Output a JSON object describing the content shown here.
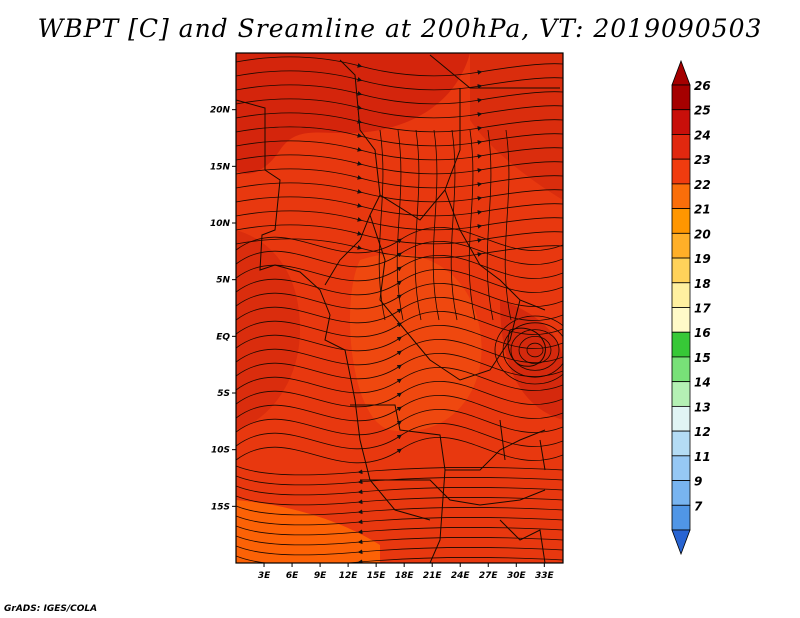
{
  "title": "WBPT [C] and Sreamline at 200hPa, VT: 2019090503",
  "credit": "GrADS: IGES/COLA",
  "map": {
    "lon_range": [
      0,
      35
    ],
    "lat_range": [
      -20,
      25
    ],
    "lat_ticks": [
      {
        "value": 20,
        "label": "20N"
      },
      {
        "value": 15,
        "label": "15N"
      },
      {
        "value": 10,
        "label": "10N"
      },
      {
        "value": 5,
        "label": "5N"
      },
      {
        "value": 0,
        "label": "EQ"
      },
      {
        "value": -5,
        "label": "5S"
      },
      {
        "value": -10,
        "label": "10S"
      },
      {
        "value": -15,
        "label": "15S"
      }
    ],
    "lon_ticks": [
      {
        "value": 3,
        "label": "3E"
      },
      {
        "value": 6,
        "label": "6E"
      },
      {
        "value": 9,
        "label": "9E"
      },
      {
        "value": 12,
        "label": "12E"
      },
      {
        "value": 15,
        "label": "15E"
      },
      {
        "value": 18,
        "label": "18E"
      },
      {
        "value": 21,
        "label": "21E"
      },
      {
        "value": 24,
        "label": "24E"
      },
      {
        "value": 27,
        "label": "27E"
      },
      {
        "value": 30,
        "label": "30E"
      },
      {
        "value": 33,
        "label": "33E"
      }
    ],
    "field_colors": {
      "dominant": "#e83214",
      "dark": "#c81e0c",
      "light": "#f0500f",
      "orange": "#ff6a00"
    }
  },
  "colorbar": {
    "levels": [
      {
        "label": "26",
        "color": "#a50000"
      },
      {
        "label": "25",
        "color": "#c80f0a"
      },
      {
        "label": "24",
        "color": "#e1280f"
      },
      {
        "label": "23",
        "color": "#f03c0f"
      },
      {
        "label": "22",
        "color": "#fa6e0a"
      },
      {
        "label": "21",
        "color": "#ff9600"
      },
      {
        "label": "20",
        "color": "#ffaf28"
      },
      {
        "label": "19",
        "color": "#ffd25a"
      },
      {
        "label": "18",
        "color": "#fff0a0"
      },
      {
        "label": "17",
        "color": "#fffac8"
      },
      {
        "label": "16",
        "color": "#37c837"
      },
      {
        "label": "15",
        "color": "#78e178"
      },
      {
        "label": "14",
        "color": "#b4f0b4"
      },
      {
        "label": "13",
        "color": "#e1f5f5"
      },
      {
        "label": "12",
        "color": "#b4dcf5"
      },
      {
        "label": "11",
        "color": "#96c8f5"
      },
      {
        "label": "9",
        "color": "#78b4f0"
      },
      {
        "label": "7",
        "color": "#5096e6"
      }
    ],
    "below_color": "#2864d2",
    "under_label": "7"
  }
}
